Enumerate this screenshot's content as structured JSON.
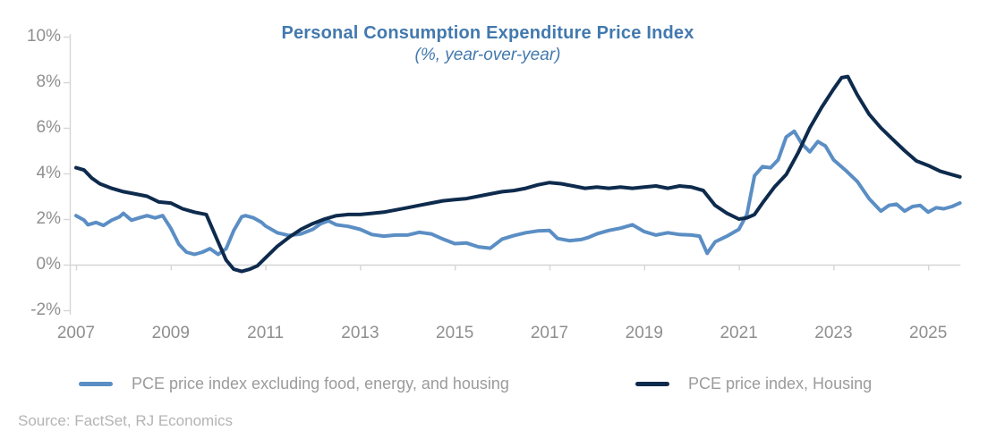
{
  "chart": {
    "title": "Personal Consumption Expenditure Price Index",
    "subtitle": "(%, year-over-year)",
    "source": "Source: FactSet, RJ Economics"
  },
  "colors": {
    "title_blue": "#4379ae",
    "axis_text": "#8f8f8f",
    "legend_text": "#9b9b9b",
    "source_text": "#b4b4b4",
    "axis_line": "#d6d6d6",
    "series_light_blue": "#5b8ec4",
    "series_dark_navy": "#0e2b4d"
  },
  "chart_data": {
    "type": "line",
    "title": "Personal Consumption Expenditure Price Index",
    "subtitle": "(%, year-over-year)",
    "xlabel": "",
    "ylabel": "",
    "xlim": [
      2007,
      2025.75
    ],
    "ylim": [
      -2,
      10
    ],
    "grid": "baseline at 0% only",
    "legend_position": "bottom",
    "yticks": [
      {
        "value": 10,
        "label": "10%"
      },
      {
        "value": 8,
        "label": "8%"
      },
      {
        "value": 6,
        "label": "6%"
      },
      {
        "value": 4,
        "label": "4%"
      },
      {
        "value": 2,
        "label": "2%"
      },
      {
        "value": 0,
        "label": "0%"
      },
      {
        "value": -2,
        "label": "-2%"
      }
    ],
    "xticks": [
      {
        "value": 2007,
        "label": "2007"
      },
      {
        "value": 2009,
        "label": "2009"
      },
      {
        "value": 2011,
        "label": "2011"
      },
      {
        "value": 2013,
        "label": "2013"
      },
      {
        "value": 2015,
        "label": "2015"
      },
      {
        "value": 2017,
        "label": "2017"
      },
      {
        "value": 2019,
        "label": "2019"
      },
      {
        "value": 2021,
        "label": "2021"
      },
      {
        "value": 2023,
        "label": "2023"
      },
      {
        "value": 2025,
        "label": "2025"
      }
    ],
    "series": [
      {
        "name": "PCE price index excluding food, energy, and housing",
        "color": "#5b8ec4",
        "points": [
          [
            2007.0,
            2.15
          ],
          [
            2007.17,
            1.95
          ],
          [
            2007.25,
            1.75
          ],
          [
            2007.42,
            1.85
          ],
          [
            2007.58,
            1.72
          ],
          [
            2007.75,
            1.95
          ],
          [
            2007.92,
            2.1
          ],
          [
            2008.0,
            2.25
          ],
          [
            2008.17,
            1.95
          ],
          [
            2008.33,
            2.05
          ],
          [
            2008.5,
            2.15
          ],
          [
            2008.67,
            2.05
          ],
          [
            2008.83,
            2.15
          ],
          [
            2009.0,
            1.6
          ],
          [
            2009.17,
            0.9
          ],
          [
            2009.33,
            0.55
          ],
          [
            2009.5,
            0.45
          ],
          [
            2009.67,
            0.55
          ],
          [
            2009.83,
            0.7
          ],
          [
            2010.0,
            0.45
          ],
          [
            2010.17,
            0.7
          ],
          [
            2010.33,
            1.5
          ],
          [
            2010.5,
            2.1
          ],
          [
            2010.58,
            2.15
          ],
          [
            2010.75,
            2.05
          ],
          [
            2010.92,
            1.85
          ],
          [
            2011.0,
            1.7
          ],
          [
            2011.25,
            1.4
          ],
          [
            2011.5,
            1.28
          ],
          [
            2011.75,
            1.35
          ],
          [
            2012.0,
            1.55
          ],
          [
            2012.17,
            1.8
          ],
          [
            2012.33,
            1.92
          ],
          [
            2012.5,
            1.75
          ],
          [
            2012.75,
            1.68
          ],
          [
            2013.0,
            1.55
          ],
          [
            2013.25,
            1.32
          ],
          [
            2013.5,
            1.25
          ],
          [
            2013.75,
            1.3
          ],
          [
            2014.0,
            1.3
          ],
          [
            2014.25,
            1.42
          ],
          [
            2014.5,
            1.35
          ],
          [
            2014.75,
            1.12
          ],
          [
            2015.0,
            0.92
          ],
          [
            2015.25,
            0.95
          ],
          [
            2015.5,
            0.78
          ],
          [
            2015.75,
            0.72
          ],
          [
            2016.0,
            1.12
          ],
          [
            2016.25,
            1.28
          ],
          [
            2016.5,
            1.4
          ],
          [
            2016.75,
            1.48
          ],
          [
            2017.0,
            1.5
          ],
          [
            2017.17,
            1.15
          ],
          [
            2017.42,
            1.05
          ],
          [
            2017.67,
            1.1
          ],
          [
            2017.83,
            1.2
          ],
          [
            2018.0,
            1.35
          ],
          [
            2018.25,
            1.5
          ],
          [
            2018.5,
            1.6
          ],
          [
            2018.75,
            1.75
          ],
          [
            2019.0,
            1.45
          ],
          [
            2019.25,
            1.3
          ],
          [
            2019.5,
            1.4
          ],
          [
            2019.75,
            1.32
          ],
          [
            2020.0,
            1.3
          ],
          [
            2020.17,
            1.25
          ],
          [
            2020.33,
            0.5
          ],
          [
            2020.5,
            1.0
          ],
          [
            2020.75,
            1.25
          ],
          [
            2021.0,
            1.55
          ],
          [
            2021.17,
            2.2
          ],
          [
            2021.33,
            3.9
          ],
          [
            2021.5,
            4.3
          ],
          [
            2021.67,
            4.25
          ],
          [
            2021.83,
            4.6
          ],
          [
            2022.0,
            5.6
          ],
          [
            2022.17,
            5.85
          ],
          [
            2022.33,
            5.3
          ],
          [
            2022.5,
            4.95
          ],
          [
            2022.67,
            5.4
          ],
          [
            2022.83,
            5.2
          ],
          [
            2023.0,
            4.6
          ],
          [
            2023.25,
            4.15
          ],
          [
            2023.5,
            3.65
          ],
          [
            2023.75,
            2.9
          ],
          [
            2024.0,
            2.35
          ],
          [
            2024.17,
            2.6
          ],
          [
            2024.33,
            2.65
          ],
          [
            2024.5,
            2.35
          ],
          [
            2024.67,
            2.55
          ],
          [
            2024.83,
            2.6
          ],
          [
            2025.0,
            2.3
          ],
          [
            2025.17,
            2.5
          ],
          [
            2025.33,
            2.45
          ],
          [
            2025.5,
            2.55
          ],
          [
            2025.67,
            2.7
          ]
        ]
      },
      {
        "name": "PCE price index, Housing",
        "color": "#0e2b4d",
        "points": [
          [
            2007.0,
            4.25
          ],
          [
            2007.17,
            4.15
          ],
          [
            2007.33,
            3.8
          ],
          [
            2007.5,
            3.55
          ],
          [
            2007.75,
            3.35
          ],
          [
            2008.0,
            3.2
          ],
          [
            2008.25,
            3.1
          ],
          [
            2008.5,
            3.0
          ],
          [
            2008.75,
            2.75
          ],
          [
            2009.0,
            2.7
          ],
          [
            2009.25,
            2.45
          ],
          [
            2009.5,
            2.3
          ],
          [
            2009.75,
            2.2
          ],
          [
            2010.0,
            1.0
          ],
          [
            2010.17,
            0.2
          ],
          [
            2010.33,
            -0.2
          ],
          [
            2010.5,
            -0.3
          ],
          [
            2010.67,
            -0.2
          ],
          [
            2010.83,
            -0.05
          ],
          [
            2011.0,
            0.3
          ],
          [
            2011.25,
            0.8
          ],
          [
            2011.5,
            1.2
          ],
          [
            2011.75,
            1.55
          ],
          [
            2012.0,
            1.8
          ],
          [
            2012.25,
            2.0
          ],
          [
            2012.5,
            2.15
          ],
          [
            2012.75,
            2.2
          ],
          [
            2013.0,
            2.2
          ],
          [
            2013.25,
            2.25
          ],
          [
            2013.5,
            2.3
          ],
          [
            2013.75,
            2.4
          ],
          [
            2014.0,
            2.5
          ],
          [
            2014.25,
            2.6
          ],
          [
            2014.5,
            2.7
          ],
          [
            2014.75,
            2.8
          ],
          [
            2015.0,
            2.85
          ],
          [
            2015.25,
            2.9
          ],
          [
            2015.5,
            3.0
          ],
          [
            2015.75,
            3.1
          ],
          [
            2016.0,
            3.2
          ],
          [
            2016.25,
            3.25
          ],
          [
            2016.5,
            3.35
          ],
          [
            2016.75,
            3.5
          ],
          [
            2017.0,
            3.6
          ],
          [
            2017.25,
            3.55
          ],
          [
            2017.5,
            3.45
          ],
          [
            2017.75,
            3.35
          ],
          [
            2018.0,
            3.4
          ],
          [
            2018.25,
            3.35
          ],
          [
            2018.5,
            3.4
          ],
          [
            2018.75,
            3.35
          ],
          [
            2019.0,
            3.4
          ],
          [
            2019.25,
            3.45
          ],
          [
            2019.5,
            3.35
          ],
          [
            2019.75,
            3.45
          ],
          [
            2020.0,
            3.4
          ],
          [
            2020.25,
            3.25
          ],
          [
            2020.5,
            2.6
          ],
          [
            2020.75,
            2.25
          ],
          [
            2021.0,
            2.0
          ],
          [
            2021.17,
            2.05
          ],
          [
            2021.33,
            2.2
          ],
          [
            2021.5,
            2.7
          ],
          [
            2021.75,
            3.4
          ],
          [
            2022.0,
            3.95
          ],
          [
            2022.25,
            4.9
          ],
          [
            2022.5,
            6.0
          ],
          [
            2022.75,
            6.9
          ],
          [
            2023.0,
            7.7
          ],
          [
            2023.17,
            8.2
          ],
          [
            2023.3,
            8.25
          ],
          [
            2023.5,
            7.45
          ],
          [
            2023.75,
            6.6
          ],
          [
            2024.0,
            6.0
          ],
          [
            2024.25,
            5.5
          ],
          [
            2024.5,
            5.0
          ],
          [
            2024.75,
            4.55
          ],
          [
            2025.0,
            4.35
          ],
          [
            2025.25,
            4.1
          ],
          [
            2025.5,
            3.95
          ],
          [
            2025.67,
            3.85
          ]
        ]
      }
    ]
  }
}
